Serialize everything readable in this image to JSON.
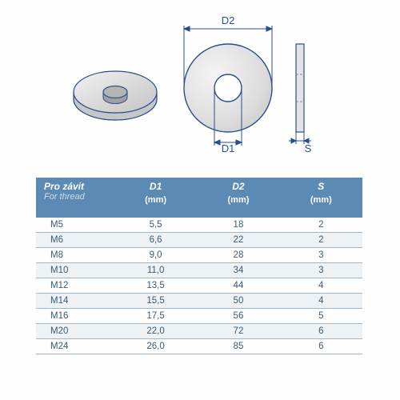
{
  "diagram": {
    "labels": {
      "D1": "D1",
      "D2": "D2",
      "S": "S"
    },
    "outline_color": "#2a4d8f",
    "fill_light": "#e8e8e8",
    "fill_mid": "#cfcfcf",
    "fill_dark": "#bfbfbf",
    "dim_line_color": "#2a4d8f",
    "hidden_line_color": "#7a8aa8"
  },
  "table": {
    "header_bg": "#5b8bb5",
    "header_fg": "#ffffff",
    "row_border": "#9fb6c9",
    "row_fg": "#3b5a75",
    "alt_bg": "#eef2f5",
    "columns": [
      {
        "title": "Pro závit",
        "sub": "For thread",
        "unit": ""
      },
      {
        "title": "D1",
        "sub": "",
        "unit": "(mm)"
      },
      {
        "title": "D2",
        "sub": "",
        "unit": "(mm)"
      },
      {
        "title": "S",
        "sub": "",
        "unit": "(mm)"
      }
    ],
    "rows": [
      [
        "M5",
        "5,5",
        "18",
        "2"
      ],
      [
        "M6",
        "6,6",
        "22",
        "2"
      ],
      [
        "M8",
        "9,0",
        "28",
        "3"
      ],
      [
        "M10",
        "11,0",
        "34",
        "3"
      ],
      [
        "M12",
        "13,5",
        "44",
        "4"
      ],
      [
        "M14",
        "15,5",
        "50",
        "4"
      ],
      [
        "M16",
        "17,5",
        "56",
        "5"
      ],
      [
        "M20",
        "22,0",
        "72",
        "6"
      ],
      [
        "M24",
        "26,0",
        "85",
        "6"
      ]
    ]
  }
}
